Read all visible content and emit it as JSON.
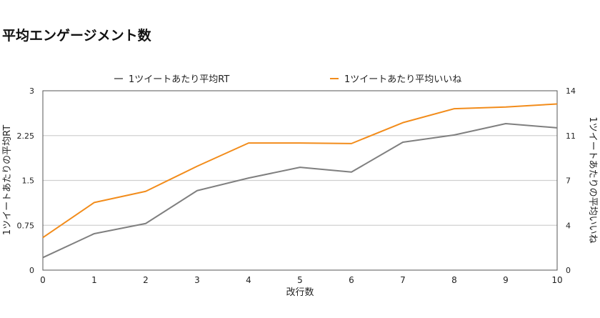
{
  "chart_data": {
    "type": "line",
    "title": "平均エンゲージメント数",
    "xlabel": "改行数",
    "ylabel_left": "1ツイートあたりの平均RT",
    "ylabel_right": "1ツイートあたりの平均いいね",
    "x": [
      0,
      1,
      2,
      3,
      4,
      5,
      6,
      7,
      8,
      9,
      10
    ],
    "xlim": [
      0,
      10
    ],
    "ylim_left": [
      0,
      3
    ],
    "ylim_right": [
      0,
      14
    ],
    "yticks_left": [
      "0",
      "0.75",
      "1.5",
      "2.25",
      "3"
    ],
    "yticks_right": [
      "0",
      "4",
      "7",
      "11",
      "14"
    ],
    "grid": true,
    "legend_position": "top",
    "series": [
      {
        "name": "1ツイートあたり平均RT",
        "axis": "left",
        "color": "#7f7f7f",
        "values": [
          0.21,
          0.61,
          0.78,
          1.33,
          1.54,
          1.72,
          1.64,
          2.14,
          2.26,
          2.45,
          2.38
        ]
      },
      {
        "name": "1ツイートあたり平均いいね",
        "axis": "right",
        "color": "#f28c1b",
        "values": [
          2.54,
          5.28,
          6.15,
          8.11,
          9.92,
          9.92,
          9.88,
          11.51,
          12.6,
          12.73,
          12.97
        ]
      }
    ]
  }
}
